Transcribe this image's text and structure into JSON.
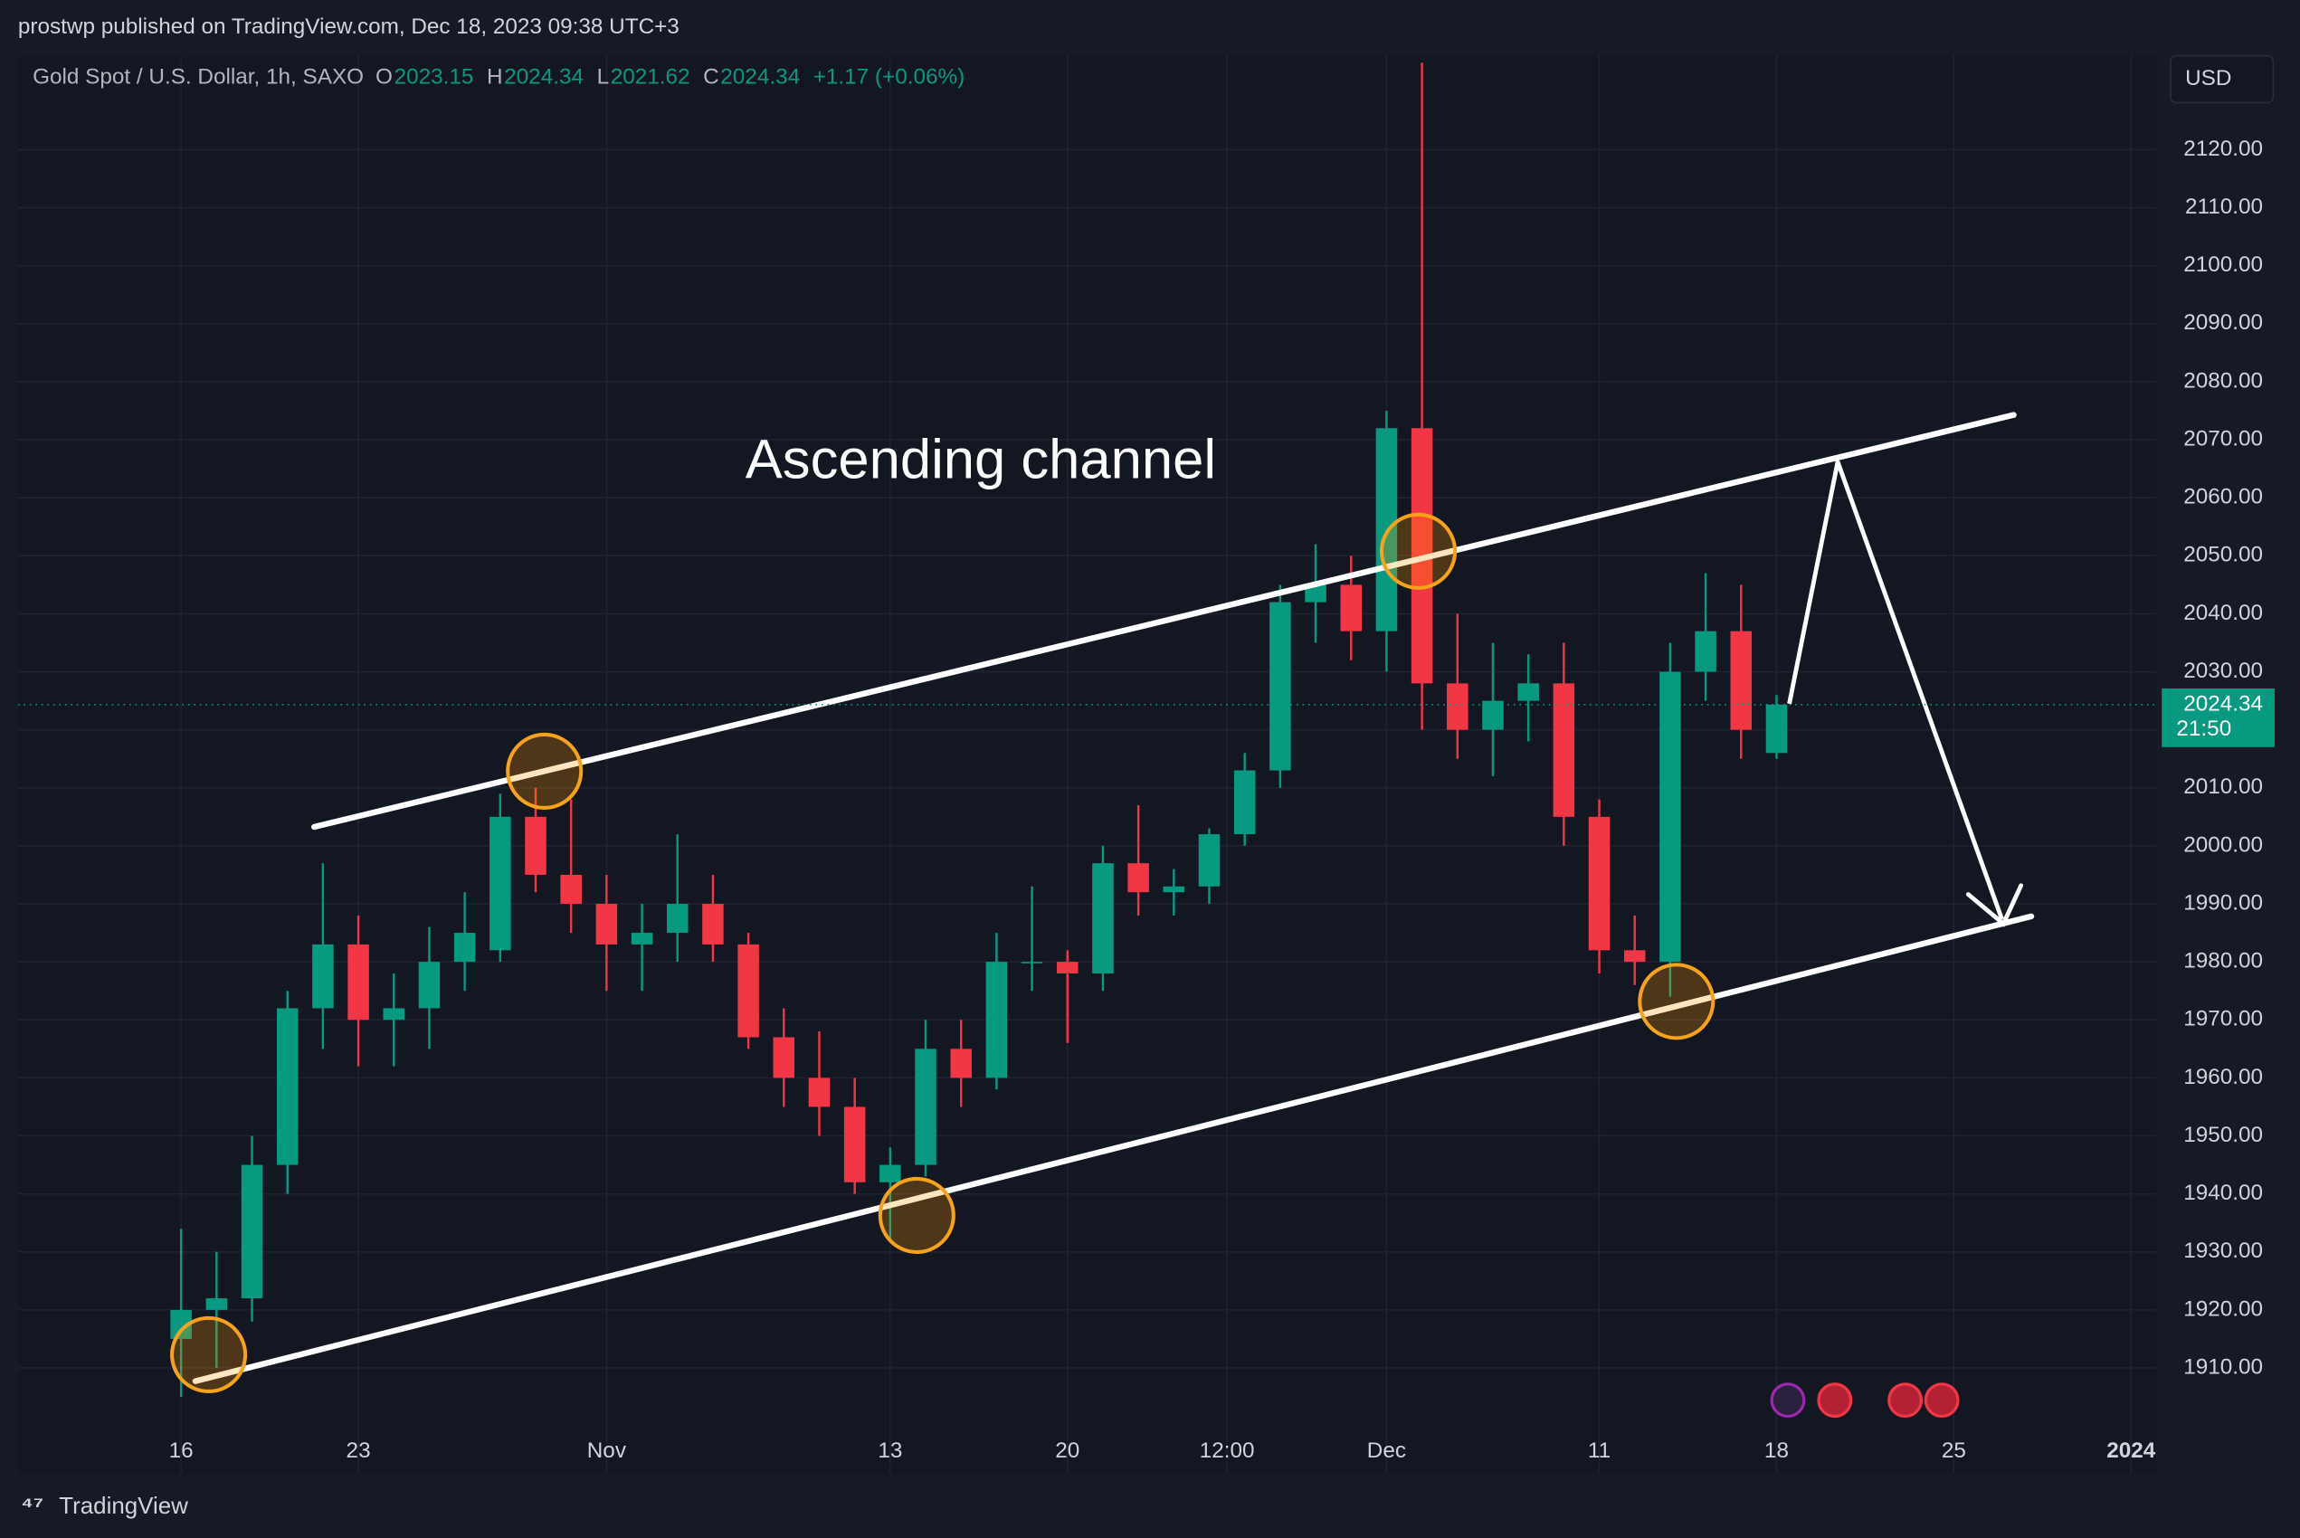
{
  "header": {
    "published": "prostwp published on TradingView.com, Dec 18, 2023 09:38 UTC+3",
    "symbol": "Gold Spot / U.S. Dollar, 1h, SAXO",
    "ohlc": [
      {
        "key": "O",
        "value": "2023.15"
      },
      {
        "key": "H",
        "value": "2024.34"
      },
      {
        "key": "L",
        "value": "2021.62"
      },
      {
        "key": "C",
        "value": "2024.34"
      }
    ],
    "change": "+1.17 (+0.06%)",
    "currency": "USD"
  },
  "footer": {
    "brand": "TradingView"
  },
  "chart_data": {
    "type": "candlestick",
    "annotation": "Ascending channel",
    "categories": [
      null,
      null,
      null,
      null,
      null,
      null,
      null,
      null,
      null,
      null,
      null,
      null,
      null,
      null,
      null,
      null,
      null,
      null,
      null,
      null,
      null,
      null,
      null,
      null,
      null,
      null,
      null,
      null,
      null,
      null,
      null,
      null,
      null,
      null,
      null,
      null,
      null,
      null,
      null,
      null,
      null,
      null,
      null,
      null,
      null,
      null
    ],
    "open": [
      1915,
      1920,
      1922,
      1945,
      1972,
      1983,
      1970,
      1972,
      1980,
      1982,
      2005,
      1995,
      1990,
      1983,
      1985,
      1990,
      1983,
      1967,
      1960,
      1955,
      1942,
      1945,
      1965,
      1960,
      1980,
      1980,
      1978,
      1997,
      1992,
      1993,
      2002,
      2013,
      2042,
      2045,
      2037,
      2072,
      2028,
      2020,
      2025,
      2028,
      2005,
      1982,
      1980,
      2030,
      2037,
      2016
    ],
    "high": [
      1934,
      1930,
      1950,
      1975,
      1997,
      1988,
      1978,
      1986,
      1992,
      2009,
      2010,
      2008,
      1995,
      1990,
      2002,
      1995,
      1985,
      1972,
      1968,
      1960,
      1948,
      1970,
      1970,
      1985,
      1993,
      1982,
      2000,
      2007,
      1996,
      2003,
      2016,
      2045,
      2052,
      2050,
      2075,
      2135,
      2040,
      2035,
      2033,
      2035,
      2008,
      1988,
      2035,
      2047,
      2045,
      2026
    ],
    "low": [
      1905,
      1910,
      1918,
      1940,
      1965,
      1962,
      1962,
      1965,
      1975,
      1980,
      1992,
      1985,
      1975,
      1975,
      1980,
      1980,
      1965,
      1955,
      1950,
      1940,
      1932,
      1943,
      1955,
      1958,
      1975,
      1966,
      1975,
      1988,
      1988,
      1990,
      2000,
      2010,
      2035,
      2032,
      2030,
      2020,
      2015,
      2012,
      2018,
      2000,
      1978,
      1976,
      1974,
      2025,
      2015,
      2015
    ],
    "close": [
      1920,
      1922,
      1945,
      1972,
      1983,
      1970,
      1972,
      1980,
      1985,
      2005,
      1995,
      1990,
      1983,
      1985,
      1990,
      1983,
      1967,
      1960,
      1955,
      1942,
      1945,
      1965,
      1960,
      1980,
      1980,
      1978,
      1997,
      1992,
      1993,
      2002,
      2013,
      2042,
      2045,
      2037,
      2072,
      2028,
      2020,
      2025,
      2028,
      2005,
      1982,
      1980,
      2030,
      2037,
      2020,
      2024.34
    ],
    "up_color": "#089981",
    "down_color": "#f23645",
    "last_price": {
      "value": 2024.34,
      "label": "2024.34",
      "countdown": "21:50"
    },
    "ylim": [
      1891.8,
      2136.2
    ],
    "yticks": [
      {
        "value": 1910,
        "label": "1910.00"
      },
      {
        "value": 1920,
        "label": "1920.00"
      },
      {
        "value": 1930,
        "label": "1930.00"
      },
      {
        "value": 1940,
        "label": "1940.00"
      },
      {
        "value": 1950,
        "label": "1950.00"
      },
      {
        "value": 1960,
        "label": "1960.00"
      },
      {
        "value": 1970,
        "label": "1970.00"
      },
      {
        "value": 1980,
        "label": "1980.00"
      },
      {
        "value": 1990,
        "label": "1990.00"
      },
      {
        "value": 2000,
        "label": "2000.00"
      },
      {
        "value": 2010,
        "label": "2010.00"
      },
      {
        "value": 2020,
        "label": "2020.00"
      },
      {
        "value": 2030,
        "label": "2030.00"
      },
      {
        "value": 2040,
        "label": "2040.00"
      },
      {
        "value": 2050,
        "label": "2050.00"
      },
      {
        "value": 2060,
        "label": "2060.00"
      },
      {
        "value": 2070,
        "label": "2070.00"
      },
      {
        "value": 2080,
        "label": "2080.00"
      },
      {
        "value": 2090,
        "label": "2090.00"
      },
      {
        "value": 2100,
        "label": "2100.00"
      },
      {
        "value": 2110,
        "label": "2110.00"
      },
      {
        "value": 2120,
        "label": "2120.00"
      }
    ],
    "xlim": [
      -4.6,
      55.7
    ],
    "xticks": [
      {
        "value": 0,
        "label": "16"
      },
      {
        "value": 5,
        "label": "23"
      },
      {
        "value": 12,
        "label": "Nov"
      },
      {
        "value": 20,
        "label": "13"
      },
      {
        "value": 25,
        "label": "20"
      },
      {
        "value": 29.5,
        "label": "12:00"
      },
      {
        "value": 34,
        "label": "Dec"
      },
      {
        "value": 40,
        "label": "11"
      },
      {
        "value": 45,
        "label": "18"
      },
      {
        "value": 50,
        "label": "25"
      },
      {
        "value": 55,
        "label": "2024"
      }
    ],
    "grid": true
  }
}
